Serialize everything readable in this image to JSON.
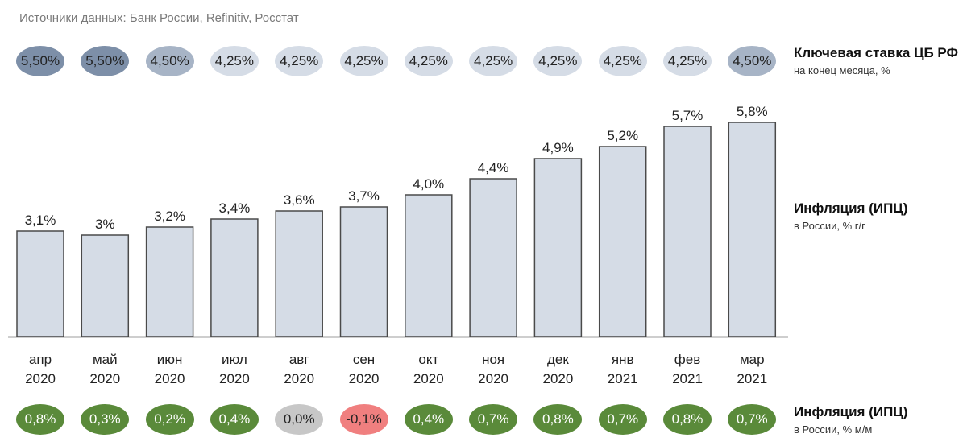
{
  "source": "Источники данных: Банк России, Refinitiv, Росстат",
  "key_rate": {
    "title": "Ключевая ставка ЦБ РФ",
    "subtitle": "на конец месяца, %",
    "values": [
      "5,50%",
      "5,50%",
      "4,50%",
      "4,25%",
      "4,25%",
      "4,25%",
      "4,25%",
      "4,25%",
      "4,25%",
      "4,25%",
      "4,25%",
      "4,50%"
    ],
    "colors": [
      "#7d8fa8",
      "#7d8fa8",
      "#a7b4c6",
      "#d5dce6",
      "#d5dce6",
      "#d5dce6",
      "#d5dce6",
      "#d5dce6",
      "#d5dce6",
      "#d5dce6",
      "#d5dce6",
      "#a7b4c6"
    ]
  },
  "inflation_yoy": {
    "title": "Инфляция (ИПЦ)",
    "subtitle": "в России, % г/г"
  },
  "inflation_mom": {
    "title": "Инфляция (ИПЦ)",
    "subtitle": "в России, % м/м",
    "values": [
      "0,8%",
      "0,3%",
      "0,2%",
      "0,4%",
      "0,0%",
      "-0,1%",
      "0,4%",
      "0,7%",
      "0,8%",
      "0,7%",
      "0,8%",
      "0,7%"
    ],
    "colors": [
      "#5a8a3a",
      "#5a8a3a",
      "#5a8a3a",
      "#5a8a3a",
      "#c7c7c7",
      "#f07f7f",
      "#5a8a3a",
      "#5a8a3a",
      "#5a8a3a",
      "#5a8a3a",
      "#5a8a3a",
      "#5a8a3a"
    ],
    "text_colors": [
      "#ffffff",
      "#ffffff",
      "#ffffff",
      "#ffffff",
      "#222222",
      "#222222",
      "#ffffff",
      "#ffffff",
      "#ffffff",
      "#ffffff",
      "#ffffff",
      "#ffffff"
    ]
  },
  "chart_data": {
    "type": "bar",
    "categories": [
      [
        "апр",
        "2020"
      ],
      [
        "май",
        "2020"
      ],
      [
        "июн",
        "2020"
      ],
      [
        "июл",
        "2020"
      ],
      [
        "авг",
        "2020"
      ],
      [
        "сен",
        "2020"
      ],
      [
        "окт",
        "2020"
      ],
      [
        "ноя",
        "2020"
      ],
      [
        "дек",
        "2020"
      ],
      [
        "янв",
        "2021"
      ],
      [
        "фев",
        "2021"
      ],
      [
        "мар",
        "2021"
      ]
    ],
    "values": [
      3.1,
      3.0,
      3.2,
      3.4,
      3.6,
      3.7,
      4.0,
      4.4,
      4.9,
      5.2,
      5.7,
      5.8
    ],
    "data_labels": [
      "3,1%",
      "3%",
      "3,2%",
      "3,4%",
      "3,6%",
      "3,7%",
      "4,0%",
      "4,4%",
      "4,9%",
      "5,2%",
      "5,7%",
      "5,8%"
    ],
    "ylim": [
      0,
      6
    ],
    "bar_color": "#d5dce6",
    "bar_stroke": "#4a4a4a",
    "grid": false
  }
}
